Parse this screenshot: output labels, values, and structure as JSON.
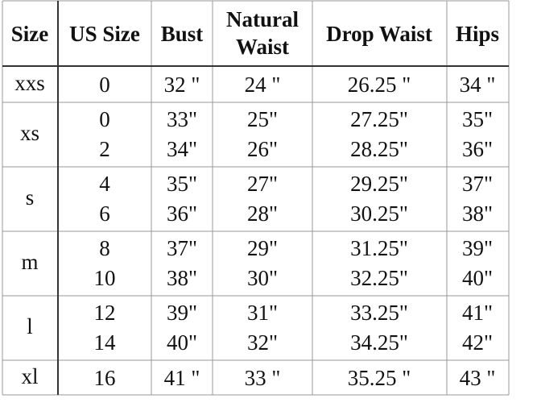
{
  "table": {
    "header": [
      "Size",
      "US Size",
      "Bust",
      [
        "Natural",
        "Waist"
      ],
      "Drop Waist",
      "Hips"
    ],
    "rows": [
      {
        "size": "xxs",
        "lines": [
          [
            "0",
            "32 \"",
            "24 \"",
            "26.25 \"",
            "34 \""
          ]
        ]
      },
      {
        "size": "xs",
        "lines": [
          [
            "0",
            "33\"",
            "25\"",
            "27.25\"",
            "35\""
          ],
          [
            "2",
            "34\"",
            "26\"",
            "28.25\"",
            "36\""
          ]
        ]
      },
      {
        "size": "s",
        "lines": [
          [
            "4",
            "35\"",
            "27\"",
            "29.25\"",
            "37\""
          ],
          [
            "6",
            "36\"",
            "28\"",
            "30.25\"",
            "38\""
          ]
        ]
      },
      {
        "size": "m",
        "lines": [
          [
            "8",
            "37\"",
            "29\"",
            "31.25\"",
            "39\""
          ],
          [
            "10",
            "38\"",
            "30\"",
            "32.25\"",
            "40\""
          ]
        ]
      },
      {
        "size": "l",
        "lines": [
          [
            "12",
            "39\"",
            "31\"",
            "33.25\"",
            "41\""
          ],
          [
            "14",
            "40\"",
            "32\"",
            "34.25\"",
            "42\""
          ]
        ]
      },
      {
        "size": "xl",
        "lines": [
          [
            "16",
            "41 \"",
            "33 \"",
            "35.25 \"",
            "43 \""
          ]
        ]
      }
    ]
  }
}
